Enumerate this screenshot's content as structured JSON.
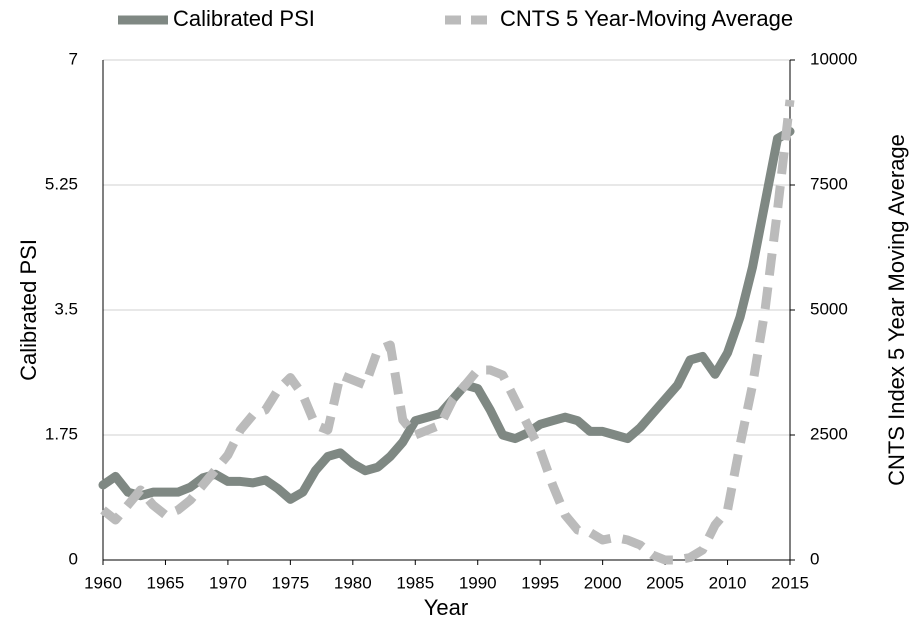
{
  "chart_data": {
    "type": "line",
    "x_label": "Year",
    "y_label": "Calibrated PSI",
    "y2_label": "CNTS Index 5 Year Moving Average",
    "x": [
      1960,
      1961,
      1962,
      1963,
      1964,
      1965,
      1966,
      1967,
      1968,
      1969,
      1970,
      1971,
      1972,
      1973,
      1974,
      1975,
      1976,
      1977,
      1978,
      1979,
      1980,
      1981,
      1982,
      1983,
      1984,
      1985,
      1986,
      1987,
      1988,
      1989,
      1990,
      1991,
      1992,
      1993,
      1994,
      1995,
      1996,
      1997,
      1998,
      1999,
      2000,
      2001,
      2002,
      2003,
      2004,
      2005,
      2006,
      2007,
      2008,
      2009,
      2010,
      2011,
      2012,
      2013,
      2014,
      2015
    ],
    "series": [
      {
        "name": "Calibrated PSI",
        "color": "#7f8883",
        "dash": false,
        "values": [
          1.05,
          1.17,
          0.95,
          0.9,
          0.95,
          0.95,
          0.95,
          1.02,
          1.15,
          1.2,
          1.1,
          1.1,
          1.08,
          1.12,
          1.0,
          0.85,
          0.95,
          1.25,
          1.45,
          1.5,
          1.35,
          1.25,
          1.3,
          1.45,
          1.65,
          1.95,
          2.0,
          2.05,
          2.25,
          2.45,
          2.4,
          2.1,
          1.75,
          1.7,
          1.78,
          1.9,
          1.95,
          2.0,
          1.95,
          1.8,
          1.8,
          1.75,
          1.7,
          1.85,
          2.05,
          2.25,
          2.45,
          2.8,
          2.85,
          2.6,
          2.9,
          3.4,
          4.1,
          5.0,
          5.9,
          6.0
        ]
      },
      {
        "name": "CNTS 5 Year-Moving Average",
        "color": "#bbbbbb",
        "dash": true,
        "axis": "y2",
        "values": [
          1000,
          800,
          1100,
          1400,
          1100,
          900,
          1000,
          1200,
          1500,
          1800,
          2100,
          2600,
          2900,
          3000,
          3400,
          3650,
          3300,
          2700,
          2600,
          3700,
          3600,
          3500,
          4200,
          4300,
          2800,
          2500,
          2600,
          2700,
          3200,
          3500,
          3800,
          3800,
          3700,
          3200,
          2700,
          2200,
          1500,
          900,
          600,
          550,
          400,
          450,
          400,
          300,
          100,
          0,
          0,
          50,
          200,
          700,
          1000,
          2300,
          3500,
          5000,
          7000,
          9200
        ]
      }
    ],
    "xlim": [
      1960,
      2015
    ],
    "xticks": [
      1960,
      1965,
      1970,
      1975,
      1980,
      1985,
      1990,
      1995,
      2000,
      2005,
      2010,
      2015
    ],
    "ylim": [
      0,
      7
    ],
    "yticks": [
      0,
      1.75,
      3.5,
      5.25,
      7
    ],
    "y2lim": [
      0,
      10000
    ],
    "y2ticks": [
      0,
      2500,
      5000,
      7500,
      10000
    ],
    "grid": true,
    "legend": "top"
  }
}
